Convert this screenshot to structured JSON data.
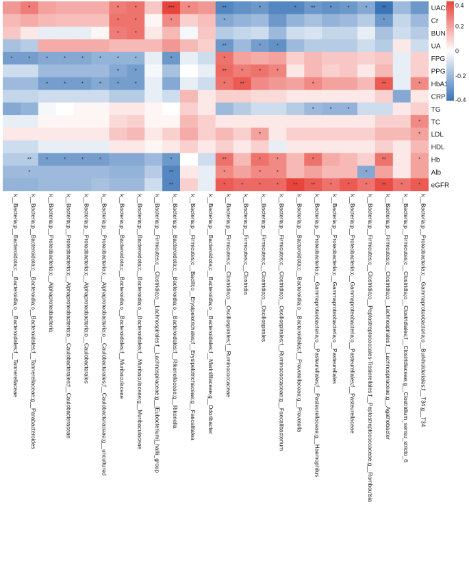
{
  "chart_data": {
    "type": "heatmap",
    "rows": [
      "UACR",
      "Cr",
      "BUN",
      "UA",
      "FPG",
      "PPG",
      "HbA1c",
      "CRP",
      "TG",
      "TC",
      "LDL",
      "HDL",
      "Hb",
      "Alb",
      "eGFR"
    ],
    "columns": [
      "k__Bacteria;p__Bacteroidota;c__Bacteroidia;o__Bacteroidales;f__Tannerellaceae",
      "k__Bacteria;p__Bacteroidota;c__Bacteroidia;o__Bacteroidales;f__Tannerellaceae;g__Parabacteroides",
      "k__Bacteria;p__Proteobacteria;c__Alphaproteobacteria",
      "k__Bacteria;p__Proteobacteria;c__Alphaproteobacteria;o__Caulobacterales;f__Caulobacteraceae",
      "k__Bacteria;p__Proteobacteria;c__Alphaproteobacteria;o__Caulobacterales",
      "k__Bacteria;p__Proteobacteria;c__Alphaproteobacteria;o__Caulobacterales;f__Caulobacteraceae;g__uncultured",
      "k__Bacteria;p__Bacteroidota;c__Bacteroidia;o__Bacteroidales;f__Muribaculaceae",
      "k__Bacteria;p__Bacteroidota;c__Bacteroidia;o__Bacteroidales;f__Muribaculaceae;g__Muribaculaceae",
      "k__Bacteria;p__Firmicutes;c__Clostridia;o__Lachnospirales;f__Lachnospiraceae;g__[Eubacterium]_hallii_group",
      "k__Bacteria;p__Bacteroidota;c__Bacteroidia;o__Bacteroidales;f__Rikenellaceae;g__Rikenella",
      "k__Bacteria;p__Firmicutes;c__Bacilli;o__Erysipelotrichales;f__Erysipelotrichaceae;g__Faecalitalea",
      "k__Bacteria;p__Bacteroidota;c__Bacteroidia;o__Bacteroidales;f__Marinifilaceae;g__Odoribacter",
      "k__Bacteria;p__Firmicutes;c__Clostridia;o__Oscillospirales;f__Ruminococcaceae",
      "k__Bacteria;p__Firmicutes;c__Clostridia",
      "k__Bacteria;p__Firmicutes;c__Clostridia;o__Oscillospirales",
      "k__Bacteria;p__Firmicutes;c__Clostridia;o__Oscillospirales;f__Ruminococcaceae;g__Faecalibacterium",
      "k__Bacteria;p__Bacteroidota;c__Bacteroidia;o__Bacteroidales;f__Prevotellaceae;g__Prevotella",
      "k__Bacteria;p__Proteobacteria;c__Gammaproteobacteria;o__Pasteurellales;f__Pasteurellaceae;g__Haemophilus",
      "k__Bacteria;p__Proteobacteria;c__Gammaproteobacteria;o__Pasteurellales",
      "k__Bacteria;p__Proteobacteria;c__Gammaproteobacteria;o__Pasteurellales;f__Pasteurellaceae",
      "k__Bacteria;p__Firmicutes;c__Clostridia;o__Peptostreptococcales-Tissierellales;f__Peptostreptococcaceae;g__Romboutsia",
      "k__Bacteria;p__Firmicutes;c__Clostridia;o__Lachnospirales;f__Lachnospiraceae;g__Agathobacter",
      "k__Bacteria;p__Firmicutes;c__Clostridia;o__Clostridiales;f__Clostridiaceae;g__Clostridium_sensu_stricto_6",
      "k__Bacteria;p__Proteobacteria;c__Gammaproteobacteria;o__Burkholderiales;f__T34;g__T34"
    ],
    "values": [
      [
        0.22,
        0.28,
        0.2,
        0.18,
        0.18,
        0.18,
        0.28,
        0.3,
        0.12,
        0.4,
        0.25,
        0.22,
        -0.35,
        -0.32,
        -0.3,
        -0.35,
        -0.35,
        -0.3,
        -0.32,
        -0.3,
        -0.25,
        -0.4,
        -0.2,
        -0.3
      ],
      [
        0.15,
        0.18,
        0.15,
        0.14,
        0.14,
        0.14,
        0.3,
        0.3,
        0.02,
        0.25,
        0.1,
        0.14,
        -0.25,
        -0.22,
        -0.2,
        -0.3,
        -0.22,
        -0.18,
        -0.22,
        -0.2,
        -0.15,
        -0.3,
        -0.12,
        -0.2
      ],
      [
        0.12,
        0.05,
        -0.05,
        -0.05,
        -0.05,
        0.02,
        0.28,
        0.3,
        0.05,
        0.15,
        -0.02,
        0.12,
        -0.15,
        -0.12,
        -0.1,
        -0.2,
        -0.1,
        -0.08,
        -0.12,
        -0.12,
        -0.05,
        -0.18,
        -0.1,
        -0.15
      ],
      [
        -0.18,
        -0.15,
        0.18,
        0.18,
        0.18,
        0.18,
        0.15,
        0.15,
        0.15,
        0.22,
        0.15,
        0.1,
        -0.3,
        -0.2,
        -0.28,
        -0.32,
        -0.2,
        -0.15,
        -0.15,
        -0.15,
        -0.1,
        -0.15,
        0.05,
        -0.1
      ],
      [
        -0.28,
        -0.28,
        -0.25,
        -0.25,
        -0.25,
        -0.22,
        -0.22,
        -0.22,
        -0.05,
        -0.3,
        -0.05,
        -0.1,
        0.3,
        0.2,
        0.18,
        0.2,
        0.1,
        0.15,
        0.12,
        0.12,
        0.1,
        0.12,
        -0.05,
        0.1
      ],
      [
        -0.1,
        -0.1,
        -0.2,
        -0.2,
        -0.2,
        -0.2,
        -0.25,
        -0.28,
        -0.02,
        -0.18,
        0.0,
        -0.05,
        0.32,
        0.28,
        0.3,
        0.26,
        0.05,
        0.15,
        0.1,
        0.12,
        0.05,
        0.15,
        -0.05,
        0.1
      ],
      [
        -0.2,
        -0.2,
        -0.28,
        -0.28,
        -0.28,
        -0.25,
        -0.28,
        -0.28,
        -0.05,
        -0.25,
        -0.05,
        -0.1,
        0.3,
        0.35,
        0.25,
        0.22,
        0.2,
        0.25,
        0.2,
        0.2,
        0.15,
        0.35,
        -0.05,
        0.25
      ],
      [
        -0.12,
        -0.12,
        -0.1,
        -0.1,
        -0.1,
        -0.1,
        -0.15,
        -0.15,
        -0.05,
        -0.1,
        0.15,
        0.05,
        0.1,
        0.1,
        0.08,
        0.08,
        0.05,
        0.05,
        0.05,
        0.05,
        0.05,
        0.1,
        -0.25,
        0.05
      ],
      [
        -0.25,
        -0.22,
        -0.02,
        0.0,
        0.02,
        0.02,
        0.05,
        0.05,
        0.02,
        0.0,
        0.1,
        0.05,
        -0.2,
        -0.15,
        -0.1,
        -0.1,
        -0.15,
        -0.2,
        -0.22,
        -0.22,
        -0.1,
        -0.1,
        0.05,
        0.1
      ],
      [
        -0.05,
        -0.05,
        0.02,
        0.02,
        0.02,
        0.02,
        0.08,
        0.1,
        0.02,
        0.02,
        0.15,
        0.1,
        0.05,
        0.05,
        0.05,
        0.05,
        0.05,
        0.05,
        0.05,
        0.05,
        0.05,
        0.1,
        0.1,
        0.25
      ],
      [
        0.05,
        0.05,
        0.05,
        0.05,
        0.05,
        0.05,
        0.12,
        0.15,
        0.05,
        0.1,
        0.18,
        0.1,
        0.15,
        0.1,
        0.2,
        0.05,
        0.1,
        0.1,
        0.1,
        0.1,
        0.1,
        0.15,
        0.15,
        0.2
      ],
      [
        -0.1,
        -0.1,
        -0.05,
        -0.05,
        -0.05,
        -0.05,
        0.05,
        0.05,
        0.02,
        0.05,
        0.1,
        0.05,
        0.1,
        0.05,
        0.1,
        -0.05,
        0.05,
        0.05,
        0.05,
        0.05,
        0.05,
        0.1,
        0.05,
        0.15
      ],
      [
        -0.15,
        -0.15,
        -0.28,
        -0.28,
        -0.28,
        -0.28,
        -0.25,
        -0.25,
        -0.2,
        -0.3,
        0.0,
        -0.1,
        0.3,
        0.15,
        0.3,
        0.25,
        0.15,
        0.3,
        0.18,
        0.15,
        0.1,
        0.3,
        0.05,
        0.2
      ],
      [
        -0.2,
        -0.2,
        -0.2,
        -0.2,
        -0.2,
        -0.2,
        -0.22,
        -0.22,
        -0.15,
        -0.35,
        0.05,
        -0.05,
        0.25,
        0.2,
        0.25,
        0.25,
        0.15,
        0.2,
        0.15,
        0.15,
        -0.25,
        0.2,
        0.05,
        0.2
      ],
      [
        -0.22,
        -0.22,
        -0.2,
        -0.2,
        -0.2,
        -0.18,
        -0.2,
        -0.2,
        -0.1,
        -0.35,
        0.1,
        -0.05,
        0.35,
        0.32,
        0.32,
        0.32,
        0.4,
        0.35,
        0.3,
        0.35,
        0.3,
        0.38,
        0.3,
        0.35
      ]
    ],
    "stars": [
      [
        "",
        "*",
        "",
        "",
        "",
        "",
        "*",
        "*",
        "",
        "***",
        "*",
        "",
        "**",
        "",
        "*",
        "",
        "*",
        "**",
        "*",
        "*",
        "*",
        "**",
        "",
        ""
      ],
      [
        "",
        "",
        "",
        "",
        "",
        "",
        "*",
        "*",
        "",
        "*",
        "",
        "",
        "*",
        "",
        "",
        "",
        "",
        "",
        "",
        "",
        "",
        "*",
        "",
        ""
      ],
      [
        "",
        "",
        "",
        "",
        "",
        "",
        "*",
        "*",
        "",
        "",
        "",
        "",
        "",
        "",
        "",
        "",
        "",
        "",
        "",
        "",
        "",
        "",
        "",
        ""
      ],
      [
        "",
        "",
        "",
        "",
        "",
        "",
        "",
        "",
        "",
        "",
        "",
        "",
        "**",
        "",
        "*",
        "*",
        "",
        "",
        "",
        "",
        "",
        "",
        "",
        ""
      ],
      [
        "*",
        "*",
        "*",
        "*",
        "*",
        "*",
        "*",
        "*",
        "",
        "*",
        "",
        "",
        "*",
        "",
        "",
        "",
        "",
        "",
        "",
        "",
        "",
        "",
        "",
        ""
      ],
      [
        "",
        "",
        "",
        "",
        "",
        "",
        "*",
        "*",
        "",
        "",
        "",
        "",
        "**",
        "*",
        "*",
        "*",
        "",
        "",
        "",
        "",
        "",
        "",
        "",
        ""
      ],
      [
        "",
        "",
        "*",
        "*",
        "*",
        "*",
        "*",
        "*",
        "",
        "",
        "",
        "",
        "*",
        "**",
        "",
        "",
        "",
        "*",
        "",
        "",
        "",
        "**",
        "",
        "*"
      ],
      [
        "",
        "",
        "",
        "",
        "",
        "",
        "",
        "",
        "",
        "",
        "",
        "",
        "",
        "",
        "",
        "",
        "",
        "",
        "",
        "",
        "",
        "",
        "",
        ""
      ],
      [
        "",
        "",
        "",
        "",
        "",
        "",
        "",
        "",
        "",
        "",
        "",
        "",
        "",
        "",
        "",
        "",
        "",
        "*",
        "*",
        "*",
        "",
        "",
        "",
        ""
      ],
      [
        "",
        "",
        "",
        "",
        "",
        "",
        "",
        "",
        "",
        "",
        "",
        "",
        "",
        "",
        "",
        "",
        "",
        "",
        "",
        "",
        "",
        "",
        "",
        "*"
      ],
      [
        "",
        "",
        "",
        "",
        "",
        "",
        "",
        "",
        "",
        "",
        "",
        "",
        "",
        "",
        "*",
        "",
        "",
        "",
        "",
        "",
        "",
        "",
        "",
        "*"
      ],
      [
        "",
        "",
        "",
        "",
        "",
        "",
        "",
        "",
        "",
        "",
        "",
        "",
        "",
        "",
        "",
        "",
        "",
        "",
        "",
        "",
        "",
        "",
        "",
        ""
      ],
      [
        "",
        "**",
        "*",
        "*",
        "*",
        "*",
        "",
        "",
        "",
        "*",
        "",
        "",
        "**",
        "",
        "*",
        "*",
        "",
        "*",
        "",
        "",
        "",
        "**",
        "",
        "*"
      ],
      [
        "",
        "*",
        "",
        "",
        "",
        "",
        "",
        "",
        "",
        "**",
        "",
        "",
        "*",
        "",
        "*",
        "*",
        "",
        "",
        "",
        "",
        "*",
        "",
        "",
        ""
      ],
      [
        "",
        "",
        "",
        "",
        "",
        "",
        "",
        "",
        "",
        "**",
        "",
        "",
        "*",
        "*",
        "*",
        "*",
        "**",
        "**",
        "*",
        "*",
        "*",
        "**",
        "*",
        "*"
      ]
    ],
    "colorbar": {
      "min": -0.4,
      "max": 0.4,
      "ticks": [
        0.4,
        0.2,
        0,
        -0.2,
        -0.4
      ]
    },
    "colors": {
      "negative": "#3b75b8",
      "zero": "#ffffff",
      "positive": "#e8443c"
    }
  }
}
